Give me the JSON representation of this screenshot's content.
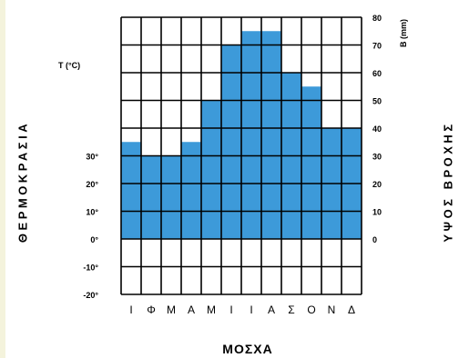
{
  "chart_data": {
    "type": "bar",
    "categories": [
      "Ι",
      "Φ",
      "Μ",
      "Α",
      "Μ",
      "Ι",
      "Ι",
      "Α",
      "Σ",
      "Ο",
      "Ν",
      "Δ"
    ],
    "values": [
      35,
      30,
      30,
      35,
      50,
      70,
      75,
      75,
      60,
      55,
      40,
      40
    ],
    "bar_color": "#3d9ad9",
    "left_axis": {
      "title": "Τ (°C)",
      "tick_labels": [
        "30°",
        "20°",
        "10°",
        "0°",
        "-10°",
        "-20°"
      ],
      "ticks": [
        30,
        20,
        10,
        0,
        -10,
        -20
      ]
    },
    "right_axis": {
      "title": "Β (mm)",
      "ticks": [
        0,
        10,
        20,
        30,
        40,
        50,
        60,
        70,
        80
      ],
      "ylim": [
        0,
        80
      ]
    },
    "grid": true,
    "left_label": "ΘΕΡΜΟΚΡΑΣΙΑ",
    "right_label": "ΥΨΟΣ ΒΡΟΧΗΣ",
    "title": "ΜΟΣΧΑ"
  }
}
